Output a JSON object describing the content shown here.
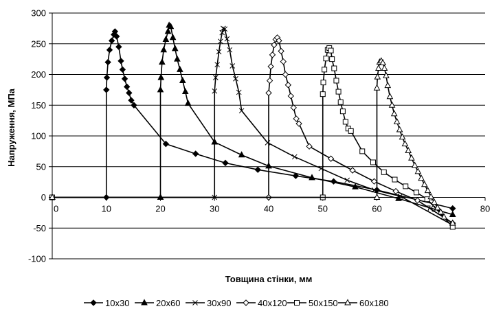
{
  "chart_data": {
    "type": "line",
    "xlabel": "Товщина стінки, мм",
    "ylabel": "Напруження, МПа",
    "xlim": [
      0,
      80
    ],
    "ylim": [
      -100,
      300
    ],
    "x_ticks": [
      0,
      10,
      20,
      30,
      40,
      50,
      60,
      70,
      80
    ],
    "y_ticks": [
      -100,
      -50,
      0,
      50,
      100,
      150,
      200,
      250,
      300
    ],
    "grid": {
      "horizontal": true,
      "vertical": false
    },
    "legend_position": "bottom",
    "series": [
      {
        "name": "10x30",
        "marker": "diamond-filled",
        "x": [
          0,
          10,
          10,
          10.1,
          10.3,
          10.6,
          11,
          11.4,
          11.6,
          11.9,
          12.3,
          12.7,
          13,
          13.4,
          13.8,
          14.2,
          14.6,
          15.1,
          21,
          26.5,
          32,
          38,
          45,
          52,
          60,
          74
        ],
        "y": [
          0,
          0,
          175,
          195,
          220,
          240,
          255,
          265,
          270,
          262,
          245,
          222,
          208,
          193,
          180,
          170,
          158,
          150,
          87,
          71,
          56,
          45,
          35,
          26,
          12,
          -18
        ]
      },
      {
        "name": "20x60",
        "marker": "triangle-filled",
        "x": [
          0,
          20,
          20,
          20.1,
          20.3,
          20.6,
          21,
          21.4,
          21.6,
          21.9,
          22.3,
          22.7,
          23.1,
          23.6,
          24.1,
          24.6,
          25.1,
          30,
          35,
          40,
          48,
          56,
          64,
          74
        ],
        "y": [
          0,
          0,
          175,
          195,
          220,
          240,
          257,
          270,
          280,
          278,
          260,
          242,
          225,
          208,
          190,
          172,
          153,
          90,
          69,
          51,
          32,
          17,
          -2,
          -28
        ]
      },
      {
        "name": "30x90",
        "marker": "x",
        "x": [
          0,
          30,
          30,
          30.2,
          30.5,
          30.8,
          31.1,
          31.4,
          31.6,
          31.9,
          32.3,
          32.8,
          33.3,
          33.9,
          34.5,
          35,
          39.8,
          44.8,
          49.7,
          54.5,
          59.5,
          64.3,
          74
        ],
        "y": [
          0,
          0,
          173,
          195,
          216,
          237,
          254,
          268,
          275,
          274,
          258,
          240,
          214,
          193,
          171,
          141,
          89,
          66,
          47,
          28,
          12,
          2,
          -45
        ]
      },
      {
        "name": "40x120",
        "marker": "diamond-open",
        "x": [
          0,
          40,
          40,
          40.2,
          40.4,
          40.7,
          41,
          41.3,
          41.6,
          41.9,
          42.3,
          42.7,
          43.1,
          43.6,
          44.1,
          44.6,
          45.1,
          45.6,
          47.5,
          51.5,
          55.5,
          59.5,
          63.5,
          67.5,
          74
        ],
        "y": [
          0,
          0,
          170,
          190,
          213,
          232,
          248,
          257,
          260,
          255,
          238,
          221,
          200,
          183,
          165,
          146,
          128,
          120,
          83,
          63,
          44,
          26,
          10,
          -5,
          -42
        ]
      },
      {
        "name": "50x150",
        "marker": "square-open",
        "x": [
          0,
          50,
          50,
          50.1,
          50.3,
          50.6,
          50.9,
          51.2,
          51.5,
          51.7,
          52.1,
          52.5,
          52.9,
          53.3,
          53.7,
          54.2,
          54.7,
          55.2,
          57.3,
          59.3,
          61.3,
          63.3,
          65.3,
          67.3,
          69.3,
          74
        ],
        "y": [
          0,
          0,
          168,
          187,
          208,
          226,
          240,
          243,
          239,
          225,
          210,
          190,
          172,
          155,
          140,
          123,
          112,
          108,
          75,
          57,
          41,
          29,
          18,
          8,
          -3,
          -48
        ]
      },
      {
        "name": "60x180",
        "marker": "triangle-open",
        "x": [
          0,
          60,
          60,
          60.1,
          60.3,
          60.5,
          60.8,
          61.1,
          61.4,
          61.7,
          62,
          62.4,
          62.8,
          63.2,
          63.7,
          64.2,
          64.7,
          65.2,
          65.8,
          66.4,
          67,
          67.6,
          68.2,
          68.8,
          69.4,
          70,
          70.6,
          71.2,
          71.8,
          72.4,
          74
        ],
        "y": [
          0,
          0,
          178,
          196,
          210,
          220,
          222,
          219,
          210,
          198,
          182,
          164,
          150,
          136,
          123,
          110,
          98,
          87,
          76,
          64,
          52,
          42,
          31,
          21,
          11,
          1,
          -8,
          -17,
          -24,
          -32,
          -42
        ]
      }
    ]
  }
}
